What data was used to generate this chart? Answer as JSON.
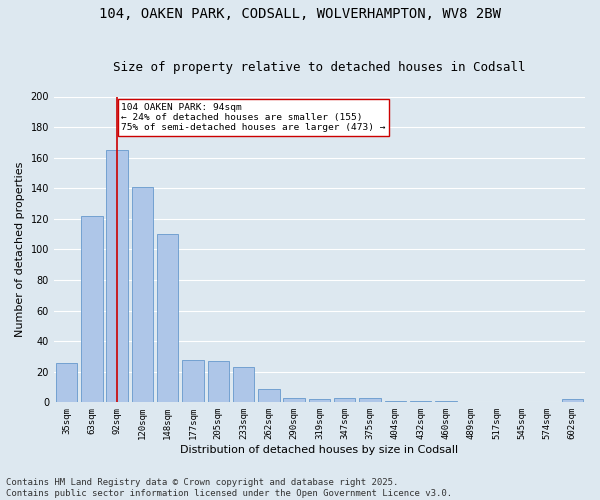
{
  "title1": "104, OAKEN PARK, CODSALL, WOLVERHAMPTON, WV8 2BW",
  "title2": "Size of property relative to detached houses in Codsall",
  "xlabel": "Distribution of detached houses by size in Codsall",
  "ylabel": "Number of detached properties",
  "categories": [
    "35sqm",
    "63sqm",
    "92sqm",
    "120sqm",
    "148sqm",
    "177sqm",
    "205sqm",
    "233sqm",
    "262sqm",
    "290sqm",
    "319sqm",
    "347sqm",
    "375sqm",
    "404sqm",
    "432sqm",
    "460sqm",
    "489sqm",
    "517sqm",
    "545sqm",
    "574sqm",
    "602sqm"
  ],
  "values": [
    26,
    122,
    165,
    141,
    110,
    28,
    27,
    23,
    9,
    3,
    2,
    3,
    3,
    1,
    1,
    1,
    0,
    0,
    0,
    0,
    2
  ],
  "bar_color": "#aec6e8",
  "bar_edge_color": "#6699cc",
  "vline_x": 2,
  "vline_color": "#cc0000",
  "annotation_text": "104 OAKEN PARK: 94sqm\n← 24% of detached houses are smaller (155)\n75% of semi-detached houses are larger (473) →",
  "annotation_box_color": "#ffffff",
  "annotation_box_edge_color": "#cc0000",
  "ylim": [
    0,
    200
  ],
  "yticks": [
    0,
    20,
    40,
    60,
    80,
    100,
    120,
    140,
    160,
    180,
    200
  ],
  "background_color": "#dde8f0",
  "grid_color": "#ffffff",
  "footer_line1": "Contains HM Land Registry data © Crown copyright and database right 2025.",
  "footer_line2": "Contains public sector information licensed under the Open Government Licence v3.0.",
  "title_fontsize": 10,
  "subtitle_fontsize": 9,
  "tick_fontsize": 6.5,
  "ylabel_fontsize": 8,
  "xlabel_fontsize": 8,
  "footer_fontsize": 6.5
}
